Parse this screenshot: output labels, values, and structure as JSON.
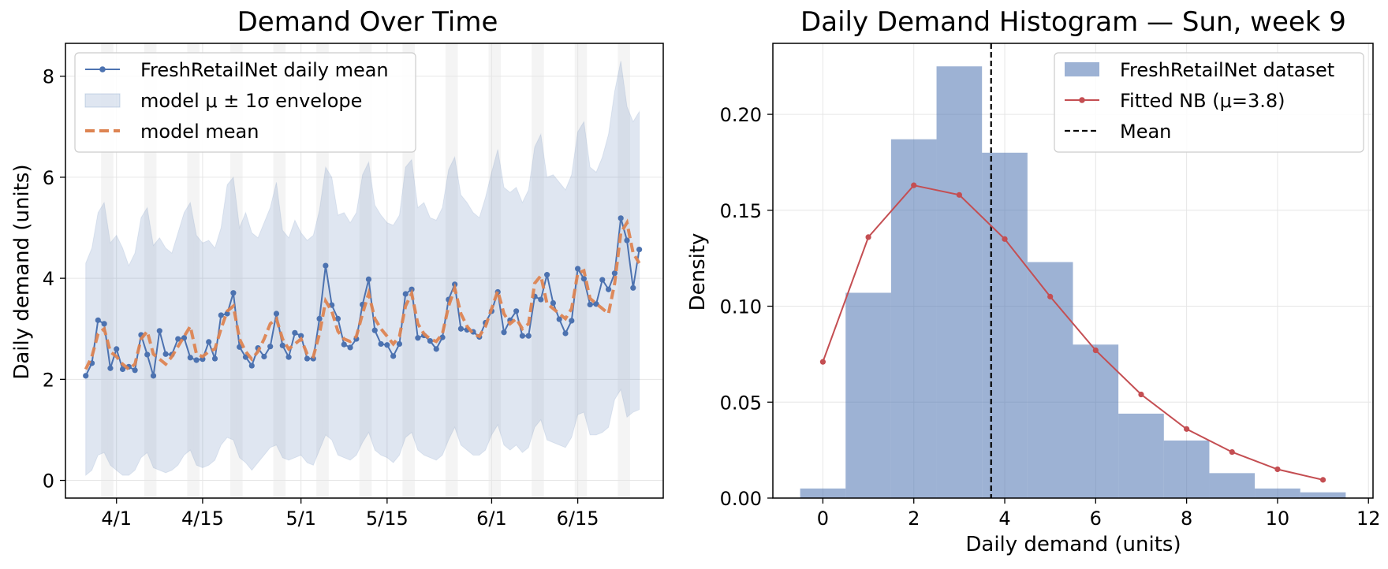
{
  "chart_data": [
    {
      "type": "line",
      "title": "Demand Over Time",
      "xlabel": "",
      "ylabel": "Daily demand (units)",
      "ylim": [
        -0.35,
        8.65
      ],
      "yticks": [
        0,
        2,
        4,
        6,
        8
      ],
      "xtick_labels": [
        "4/1",
        "4/15",
        "5/1",
        "5/15",
        "6/1",
        "6/15"
      ],
      "xtick_dates": [
        "2024-04-01",
        "2024-04-15",
        "2024-05-01",
        "2024-05-15",
        "2024-06-01",
        "2024-06-15"
      ],
      "x_start": "2024-03-27",
      "grid": true,
      "legend_position": "upper-left",
      "legend": [
        "FreshRetailNet daily mean",
        "model μ ± 1σ envelope",
        "model mean"
      ],
      "weekend_shading": true,
      "series": [
        {
          "name": "FreshRetailNet daily mean",
          "kind": "line-marker",
          "color": "#4c72b0",
          "values": [
            2.07,
            2.32,
            3.17,
            3.1,
            2.22,
            2.6,
            2.2,
            2.25,
            2.18,
            2.88,
            2.49,
            2.07,
            2.96,
            2.5,
            2.49,
            2.8,
            2.82,
            2.43,
            2.38,
            2.4,
            2.74,
            2.41,
            3.27,
            3.3,
            3.71,
            2.64,
            2.44,
            2.27,
            2.62,
            2.45,
            2.65,
            3.3,
            2.67,
            2.44,
            2.92,
            2.86,
            2.41,
            2.41,
            3.2,
            4.25,
            3.47,
            3.2,
            2.69,
            2.63,
            2.8,
            3.48,
            3.98,
            2.97,
            2.7,
            2.68,
            2.46,
            2.7,
            3.69,
            3.78,
            2.82,
            2.87,
            2.76,
            2.6,
            2.83,
            3.58,
            3.88,
            3.0,
            2.98,
            2.94,
            2.84,
            3.12,
            3.35,
            3.73,
            2.93,
            3.17,
            3.35,
            2.86,
            2.86,
            3.64,
            3.58,
            4.07,
            3.51,
            3.19,
            2.91,
            3.16,
            4.19,
            3.99,
            3.48,
            3.49,
            3.97,
            3.78,
            4.1,
            5.19,
            4.75,
            3.81,
            4.57
          ]
        },
        {
          "name": "model mean",
          "kind": "dashed",
          "color": "#dd8452",
          "values": [
            2.2,
            2.45,
            2.9,
            3.0,
            2.55,
            2.45,
            2.3,
            2.2,
            2.3,
            2.8,
            2.95,
            2.5,
            2.4,
            2.3,
            2.45,
            2.65,
            2.85,
            3.05,
            2.5,
            2.45,
            2.55,
            2.6,
            3.0,
            3.35,
            3.45,
            2.8,
            2.55,
            2.4,
            2.55,
            2.8,
            3.1,
            3.2,
            2.8,
            2.6,
            2.7,
            2.8,
            2.5,
            2.45,
            2.9,
            3.55,
            3.35,
            2.95,
            2.8,
            2.75,
            2.85,
            3.3,
            3.7,
            3.2,
            3.0,
            2.85,
            2.7,
            2.85,
            3.45,
            3.7,
            3.1,
            2.9,
            2.8,
            2.75,
            2.9,
            3.45,
            3.8,
            3.3,
            3.05,
            2.9,
            2.85,
            3.05,
            3.4,
            3.75,
            3.3,
            3.1,
            3.2,
            3.0,
            3.1,
            3.9,
            4.05,
            3.5,
            3.4,
            3.3,
            3.2,
            3.4,
            4.1,
            4.15,
            3.6,
            3.5,
            3.4,
            3.3,
            3.9,
            4.9,
            5.1,
            4.5,
            4.3
          ]
        },
        {
          "name": "model μ ± 1σ envelope",
          "kind": "band",
          "color": "#4c72b0",
          "upper": [
            4.3,
            4.6,
            5.3,
            5.5,
            4.7,
            4.85,
            4.6,
            4.25,
            4.5,
            5.2,
            5.4,
            4.65,
            4.8,
            4.6,
            4.5,
            4.9,
            5.3,
            5.5,
            4.85,
            4.7,
            4.75,
            4.6,
            5.0,
            5.85,
            6.0,
            5.0,
            5.3,
            4.9,
            4.8,
            5.1,
            5.4,
            5.9,
            4.95,
            4.8,
            5.15,
            4.9,
            4.75,
            4.85,
            5.35,
            6.2,
            6.0,
            5.25,
            5.3,
            5.1,
            5.3,
            6.05,
            6.3,
            5.45,
            5.25,
            5.1,
            5.05,
            5.25,
            6.2,
            6.35,
            5.4,
            5.5,
            5.2,
            5.15,
            5.4,
            6.15,
            6.4,
            5.65,
            5.5,
            5.3,
            5.2,
            5.6,
            6.1,
            6.55,
            5.8,
            5.7,
            5.8,
            5.5,
            5.75,
            6.6,
            6.85,
            6.0,
            6.05,
            5.9,
            5.75,
            6.05,
            6.9,
            7.1,
            6.2,
            6.1,
            6.4,
            6.85,
            7.7,
            8.3,
            7.4,
            7.1,
            7.3
          ],
          "lower": [
            0.1,
            0.2,
            0.5,
            0.55,
            0.3,
            0.2,
            0.1,
            0.1,
            0.2,
            0.45,
            0.55,
            0.25,
            0.2,
            0.15,
            0.2,
            0.3,
            0.5,
            0.6,
            0.3,
            0.25,
            0.3,
            0.4,
            0.7,
            0.85,
            0.8,
            0.45,
            0.35,
            0.2,
            0.35,
            0.5,
            0.65,
            0.7,
            0.45,
            0.4,
            0.45,
            0.5,
            0.35,
            0.3,
            0.6,
            0.9,
            0.8,
            0.5,
            0.45,
            0.4,
            0.5,
            0.75,
            0.95,
            0.6,
            0.5,
            0.45,
            0.35,
            0.5,
            0.85,
            0.95,
            0.6,
            0.5,
            0.45,
            0.4,
            0.5,
            0.8,
            1.05,
            0.7,
            0.6,
            0.5,
            0.5,
            0.6,
            0.9,
            1.1,
            0.7,
            0.6,
            0.7,
            0.55,
            0.65,
            1.05,
            1.2,
            0.8,
            0.75,
            0.7,
            0.65,
            0.85,
            1.3,
            1.35,
            0.9,
            0.9,
            0.95,
            1.05,
            1.6,
            1.8,
            1.25,
            1.35,
            1.4
          ]
        }
      ]
    },
    {
      "type": "bar",
      "title": "Daily Demand Histogram — Sun, week 9",
      "xlabel": "Daily demand (units)",
      "ylabel": "Density",
      "xlim": [
        -1.1,
        12.1
      ],
      "ylim": [
        0,
        0.237
      ],
      "xticks": [
        0,
        2,
        4,
        6,
        8,
        10,
        12
      ],
      "yticks": [
        0.0,
        0.05,
        0.1,
        0.15,
        0.2
      ],
      "grid": true,
      "legend_position": "upper-right",
      "legend": [
        "FreshRetailNet dataset",
        "Fitted NB (μ=3.8)",
        "Mean"
      ],
      "series": [
        {
          "name": "FreshRetailNet dataset",
          "kind": "histogram",
          "color": "#4c72b0",
          "x": [
            0,
            1,
            2,
            3,
            4,
            5,
            6,
            7,
            8,
            9,
            10,
            11
          ],
          "values": [
            0.005,
            0.107,
            0.187,
            0.225,
            0.18,
            0.123,
            0.08,
            0.044,
            0.03,
            0.013,
            0.005,
            0.003
          ]
        },
        {
          "name": "Fitted NB (μ=3.8)",
          "kind": "line-marker",
          "color": "#c44e52",
          "x": [
            0,
            1,
            2,
            3,
            4,
            5,
            6,
            7,
            8,
            9,
            10,
            11
          ],
          "values": [
            0.071,
            0.136,
            0.163,
            0.158,
            0.135,
            0.105,
            0.077,
            0.054,
            0.036,
            0.024,
            0.015,
            0.0095
          ]
        },
        {
          "name": "Mean",
          "kind": "vline",
          "color": "#000000",
          "x": 3.7
        }
      ]
    }
  ]
}
